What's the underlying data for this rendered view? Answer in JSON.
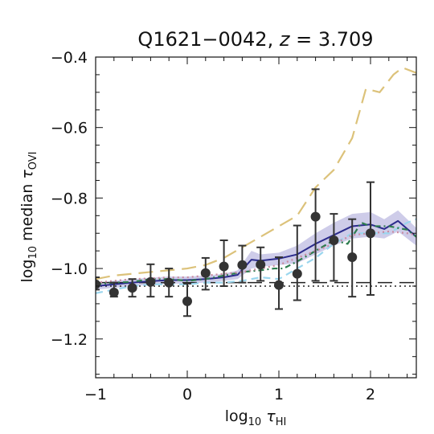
{
  "chart_data": {
    "type": "line",
    "title": "Q1621−0042, z = 3.709",
    "title_parts": {
      "name": "Q1621−0042,",
      "var": "z",
      "eq": "= 3.709"
    },
    "xlabel": {
      "prefix": "log",
      "sub": "10",
      "symbol": "τ",
      "symbol_sub": "HI"
    },
    "ylabel": {
      "prefix": "log",
      "sub": "10",
      "middle": "median",
      "symbol": "τ",
      "symbol_sub": "OVI"
    },
    "xlim": [
      -1.0,
      2.5
    ],
    "ylim": [
      -1.31,
      -0.4
    ],
    "xticks": [
      -1,
      0,
      1,
      2
    ],
    "xtick_labels": [
      "−1",
      "0",
      "1",
      "2"
    ],
    "yticks": [
      -1.2,
      -1.0,
      -0.8,
      -0.6,
      -0.4
    ],
    "ytick_labels": [
      "−1.2",
      "−1.0",
      "−0.8",
      "−0.6",
      "−0.4"
    ],
    "grid": false,
    "legend": "none",
    "observed": {
      "color": "#333333",
      "x": [
        -1.0,
        -0.8,
        -0.6,
        -0.4,
        -0.2,
        0.0,
        0.2,
        0.4,
        0.6,
        0.8,
        1.0,
        1.2,
        1.4,
        1.6,
        1.8,
        2.0
      ],
      "y": [
        -1.045,
        -1.068,
        -1.055,
        -1.038,
        -1.04,
        -1.093,
        -1.013,
        -0.994,
        -0.99,
        -0.989,
        -1.047,
        -1.015,
        -0.853,
        -0.92,
        -0.968,
        -0.9
      ],
      "err_low": [
        -1.06,
        -1.08,
        -1.08,
        -1.08,
        -1.08,
        -1.135,
        -1.06,
        -1.05,
        -1.04,
        -1.035,
        -1.115,
        -1.09,
        -1.035,
        -1.035,
        -1.08,
        -1.075
      ],
      "err_high": [
        -1.025,
        -1.04,
        -1.03,
        -0.988,
        -1.0,
        -1.043,
        -0.97,
        -0.92,
        -0.935,
        -0.94,
        -0.968,
        -0.878,
        -0.775,
        -0.845,
        -0.86,
        -0.755
      ]
    },
    "series": [
      {
        "color": "#2b2b8c",
        "style": "solid",
        "x": [
          -1.0,
          -0.8,
          -0.6,
          -0.4,
          -0.2,
          0.0,
          0.2,
          0.4,
          0.55,
          0.7,
          0.8,
          1.0,
          1.2,
          1.4,
          1.6,
          1.8,
          2.0,
          2.15,
          2.3,
          2.5
        ],
        "y": [
          -1.05,
          -1.045,
          -1.04,
          -1.036,
          -1.033,
          -1.033,
          -1.03,
          -1.025,
          -1.018,
          -0.975,
          -0.978,
          -0.972,
          -0.96,
          -0.93,
          -0.905,
          -0.88,
          -0.875,
          -0.888,
          -0.865,
          -0.91
        ]
      },
      {
        "color": "#dcc27a",
        "style": "longdash",
        "x": [
          -1.0,
          -0.8,
          -0.6,
          -0.4,
          -0.2,
          0.0,
          0.2,
          0.4,
          0.6,
          0.8,
          1.0,
          1.2,
          1.4,
          1.6,
          1.8,
          1.95,
          2.1,
          2.25,
          2.35,
          2.5
        ],
        "y": [
          -1.03,
          -1.02,
          -1.015,
          -1.01,
          -1.005,
          -1.0,
          -0.99,
          -0.97,
          -0.94,
          -0.91,
          -0.88,
          -0.85,
          -0.77,
          -0.72,
          -0.63,
          -0.49,
          -0.5,
          -0.45,
          -0.43,
          -0.445
        ]
      },
      {
        "color": "#9ad6ee",
        "style": "dashed",
        "x": [
          -1.0,
          -0.8,
          -0.6,
          -0.4,
          -0.2,
          0.0,
          0.2,
          0.4,
          0.6,
          0.8,
          1.0,
          1.2,
          1.4,
          1.6,
          1.8,
          2.0,
          2.2,
          2.4,
          2.5
        ],
        "y": [
          -1.07,
          -1.06,
          -1.05,
          -1.045,
          -1.045,
          -1.045,
          -1.04,
          -1.04,
          -1.035,
          -1.025,
          -1.03,
          -1.0,
          -0.97,
          -0.93,
          -0.9,
          -0.9,
          -0.9,
          -0.87,
          -0.86
        ]
      },
      {
        "color": "#2e7d4f",
        "style": "dashdot",
        "x": [
          -1.0,
          -0.8,
          -0.6,
          -0.4,
          -0.2,
          0.0,
          0.2,
          0.4,
          0.6,
          0.8,
          0.95,
          1.05,
          1.2,
          1.4,
          1.6,
          1.75,
          1.9,
          2.0,
          2.2,
          2.4,
          2.5
        ],
        "y": [
          -1.045,
          -1.04,
          -1.038,
          -1.03,
          -1.03,
          -1.035,
          -1.03,
          -1.02,
          -1.01,
          -1.005,
          -1.0,
          -1.0,
          -0.98,
          -0.95,
          -0.92,
          -0.93,
          -0.87,
          -0.88,
          -0.88,
          -0.89,
          -0.91
        ]
      },
      {
        "color": "#c98aa0",
        "style": "dotted",
        "x": [
          -1.0,
          -0.8,
          -0.6,
          -0.4,
          -0.2,
          0.0,
          0.2,
          0.4,
          0.6,
          0.8,
          1.0,
          1.2,
          1.4,
          1.6,
          1.8,
          2.0,
          2.2,
          2.4,
          2.5
        ],
        "y": [
          -1.04,
          -1.035,
          -1.03,
          -1.028,
          -1.025,
          -1.025,
          -1.02,
          -1.015,
          -1.01,
          -1.0,
          -0.99,
          -0.97,
          -0.95,
          -0.93,
          -0.905,
          -0.9,
          -0.895,
          -0.9,
          -0.905
        ]
      }
    ],
    "reference_lines": [
      {
        "color": "#222222",
        "style": "longdash",
        "y": -1.04
      },
      {
        "color": "#222222",
        "style": "dotted",
        "y": -1.05
      }
    ],
    "band": {
      "color": "#b9b6e0",
      "x": [
        -1.0,
        -0.8,
        -0.6,
        -0.4,
        -0.2,
        0.0,
        0.2,
        0.4,
        0.55,
        0.7,
        0.8,
        1.0,
        1.2,
        1.4,
        1.6,
        1.8,
        2.0,
        2.15,
        2.3,
        2.5
      ],
      "y_low": [
        -1.06,
        -1.055,
        -1.05,
        -1.046,
        -1.043,
        -1.043,
        -1.04,
        -1.035,
        -1.03,
        -1.0,
        -0.995,
        -0.99,
        -0.985,
        -0.96,
        -0.935,
        -0.915,
        -0.91,
        -0.915,
        -0.895,
        -0.935
      ],
      "y_high": [
        -1.04,
        -1.035,
        -1.03,
        -1.026,
        -1.023,
        -1.023,
        -1.02,
        -1.015,
        -1.005,
        -0.95,
        -0.96,
        -0.955,
        -0.935,
        -0.9,
        -0.87,
        -0.845,
        -0.84,
        -0.86,
        -0.835,
        -0.885
      ]
    }
  }
}
